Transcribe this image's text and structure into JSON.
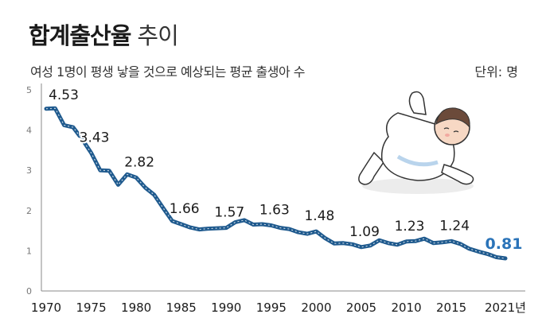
{
  "header": {
    "title_bold": "합계출산율",
    "title_light": "추이",
    "subtitle": "여성 1명이 평생 낳을 것으로 예상되는 평균 출생아 수",
    "unit": "단위: 명"
  },
  "colors": {
    "line": "#1f5a8e",
    "highlight": "#2a73b8",
    "text": "#1a1a1a",
    "axis": "#888888"
  },
  "illustration": {
    "icon": "baby-icon"
  },
  "chart_data": {
    "type": "line",
    "title": "",
    "xlabel": "",
    "ylabel": "",
    "ylim": [
      0,
      5
    ],
    "xlim": [
      1970,
      2021
    ],
    "y_ticks": [
      "0",
      "1",
      "2",
      "3",
      "4",
      "5"
    ],
    "x_tick_values": [
      1970,
      1975,
      1980,
      1985,
      1990,
      1995,
      2000,
      2005,
      2010,
      2015,
      2021
    ],
    "x_tick_labels": [
      "1970",
      "1975",
      "1980",
      "1985",
      "1990",
      "1995",
      "2000",
      "2005",
      "2010",
      "2015",
      "2021년"
    ],
    "series": [
      {
        "x": [
          1970,
          1971,
          1972,
          1973,
          1974,
          1975,
          1976,
          1977,
          1978,
          1979,
          1980,
          1981,
          1982,
          1983,
          1984,
          1985,
          1986,
          1987,
          1988,
          1989,
          1990,
          1991,
          1992,
          1993,
          1994,
          1995,
          1996,
          1997,
          1998,
          1999,
          2000,
          2001,
          2002,
          2003,
          2004,
          2005,
          2006,
          2007,
          2008,
          2009,
          2010,
          2011,
          2012,
          2013,
          2014,
          2015,
          2016,
          2017,
          2018,
          2019,
          2020,
          2021
        ],
        "y": [
          4.53,
          4.54,
          4.12,
          4.07,
          3.77,
          3.43,
          3.0,
          2.99,
          2.64,
          2.9,
          2.82,
          2.57,
          2.39,
          2.06,
          1.74,
          1.66,
          1.58,
          1.53,
          1.55,
          1.56,
          1.57,
          1.71,
          1.76,
          1.65,
          1.66,
          1.63,
          1.57,
          1.54,
          1.46,
          1.42,
          1.48,
          1.31,
          1.18,
          1.19,
          1.16,
          1.09,
          1.13,
          1.26,
          1.19,
          1.15,
          1.23,
          1.24,
          1.3,
          1.19,
          1.21,
          1.24,
          1.17,
          1.05,
          0.98,
          0.92,
          0.84,
          0.81
        ]
      }
    ],
    "annotations": [
      {
        "x": 1970,
        "y": 4.53,
        "label": "4.53"
      },
      {
        "x": 1975,
        "y": 3.43,
        "label": "3.43"
      },
      {
        "x": 1980,
        "y": 2.82,
        "label": "2.82"
      },
      {
        "x": 1985,
        "y": 1.66,
        "label": "1.66"
      },
      {
        "x": 1990,
        "y": 1.57,
        "label": "1.57"
      },
      {
        "x": 1995,
        "y": 1.63,
        "label": "1.63"
      },
      {
        "x": 2000,
        "y": 1.48,
        "label": "1.48"
      },
      {
        "x": 2005,
        "y": 1.09,
        "label": "1.09"
      },
      {
        "x": 2010,
        "y": 1.23,
        "label": "1.23"
      },
      {
        "x": 2015,
        "y": 1.24,
        "label": "1.24"
      },
      {
        "x": 2021,
        "y": 0.81,
        "label": "0.81",
        "highlight": true
      }
    ],
    "grid": false,
    "legend": "none"
  }
}
